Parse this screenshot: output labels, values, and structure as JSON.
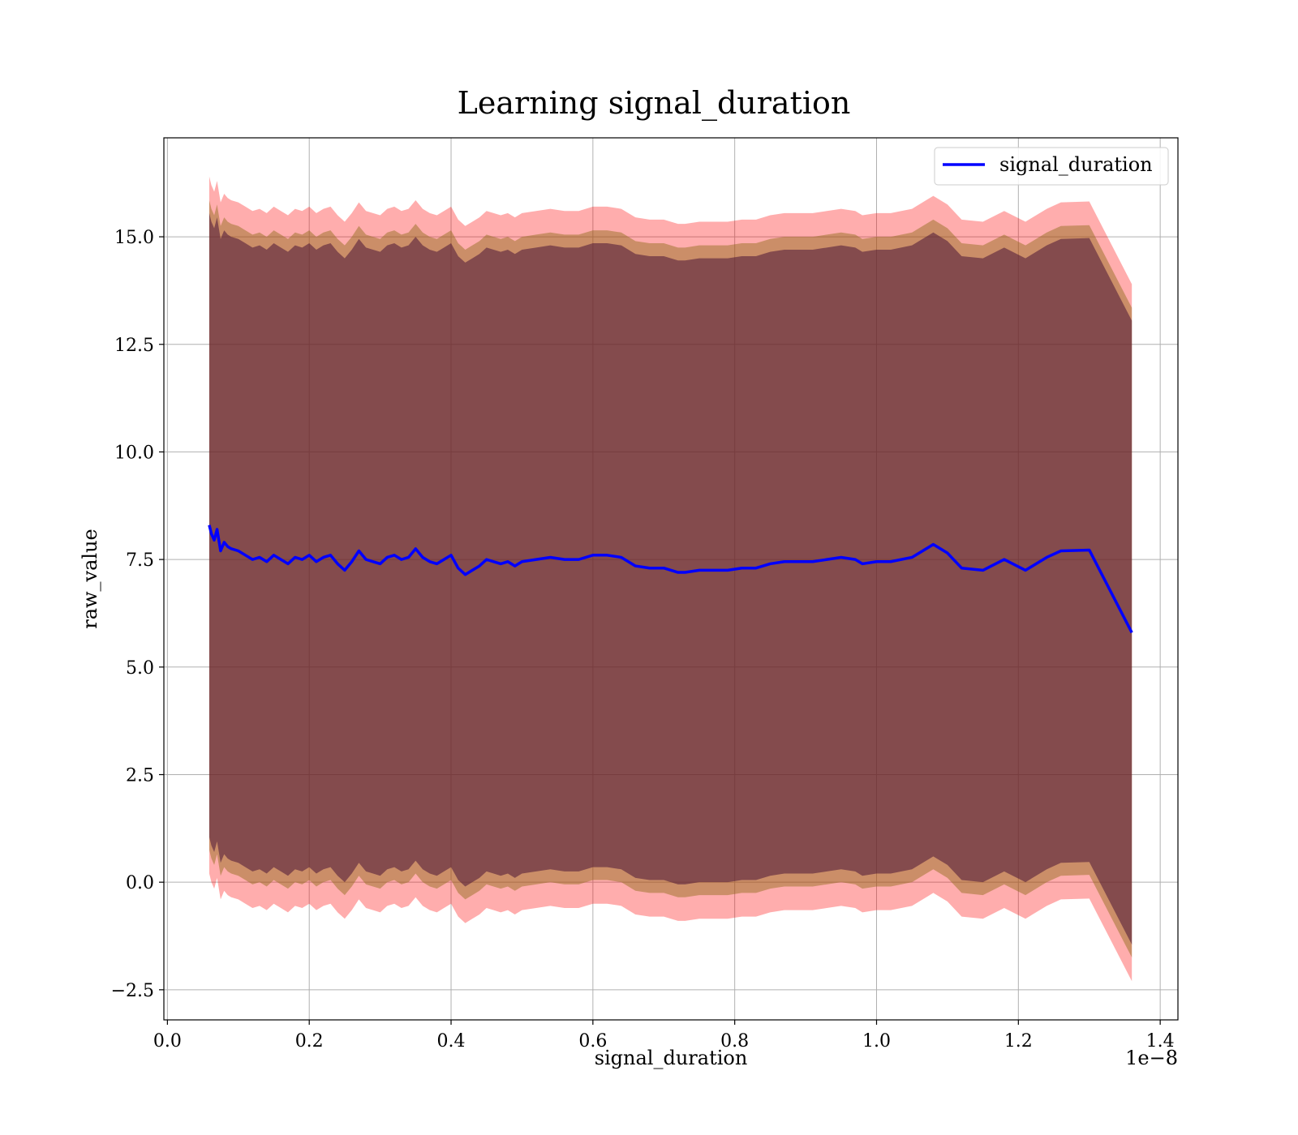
{
  "chart_data": {
    "type": "line",
    "title": "Learning signal_duration",
    "xlabel": "signal_duration",
    "ylabel": "raw_value",
    "x_offset_label": "1e−8",
    "xlim": [
      -0.005,
      1.425
    ],
    "ylim": [
      -3.2,
      17.3
    ],
    "x_ticks": [
      0.0,
      0.2,
      0.4,
      0.6,
      0.8,
      1.0,
      1.2,
      1.4
    ],
    "x_tick_labels": [
      "0.0",
      "0.2",
      "0.4",
      "0.6",
      "0.8",
      "1.0",
      "1.2",
      "1.4"
    ],
    "y_ticks": [
      -2.5,
      0.0,
      2.5,
      5.0,
      7.5,
      10.0,
      12.5,
      15.0
    ],
    "y_tick_labels": [
      "−2.5",
      "0.0",
      "2.5",
      "5.0",
      "7.5",
      "10.0",
      "12.5",
      "15.0"
    ],
    "grid": true,
    "legend_position": "top-right",
    "colors": {
      "line": "#0000ff",
      "band_outer": "#ff0000",
      "band_mid": "#8b6914",
      "band_inner": "#4b1436",
      "grid": "#b0b0b0"
    },
    "series": [
      {
        "name": "signal_duration",
        "x": [
          0.059,
          0.062,
          0.066,
          0.07,
          0.075,
          0.08,
          0.085,
          0.09,
          0.1,
          0.11,
          0.12,
          0.13,
          0.14,
          0.15,
          0.16,
          0.17,
          0.18,
          0.19,
          0.2,
          0.21,
          0.22,
          0.23,
          0.24,
          0.25,
          0.26,
          0.27,
          0.28,
          0.29,
          0.3,
          0.31,
          0.32,
          0.33,
          0.34,
          0.35,
          0.36,
          0.37,
          0.38,
          0.39,
          0.4,
          0.41,
          0.42,
          0.43,
          0.44,
          0.45,
          0.46,
          0.47,
          0.48,
          0.49,
          0.5,
          0.52,
          0.54,
          0.56,
          0.58,
          0.6,
          0.62,
          0.64,
          0.66,
          0.68,
          0.7,
          0.72,
          0.73,
          0.75,
          0.77,
          0.79,
          0.81,
          0.83,
          0.85,
          0.87,
          0.89,
          0.91,
          0.93,
          0.95,
          0.97,
          0.98,
          1.0,
          1.02,
          1.05,
          1.08,
          1.1,
          1.12,
          1.15,
          1.18,
          1.21,
          1.24,
          1.26,
          1.3,
          1.36
        ],
        "y": [
          8.3,
          8.1,
          7.95,
          8.2,
          7.7,
          7.9,
          7.8,
          7.75,
          7.7,
          7.6,
          7.5,
          7.55,
          7.45,
          7.6,
          7.5,
          7.4,
          7.55,
          7.5,
          7.6,
          7.45,
          7.55,
          7.6,
          7.4,
          7.25,
          7.45,
          7.7,
          7.5,
          7.45,
          7.4,
          7.55,
          7.6,
          7.5,
          7.55,
          7.75,
          7.55,
          7.45,
          7.4,
          7.5,
          7.6,
          7.3,
          7.15,
          7.25,
          7.35,
          7.5,
          7.45,
          7.4,
          7.45,
          7.35,
          7.45,
          7.5,
          7.55,
          7.5,
          7.5,
          7.6,
          7.6,
          7.55,
          7.35,
          7.3,
          7.3,
          7.2,
          7.2,
          7.25,
          7.25,
          7.25,
          7.3,
          7.3,
          7.4,
          7.45,
          7.45,
          7.45,
          7.5,
          7.55,
          7.5,
          7.4,
          7.45,
          7.45,
          7.55,
          7.85,
          7.65,
          7.3,
          7.25,
          7.5,
          7.25,
          7.55,
          7.7,
          7.72,
          5.8
        ]
      }
    ],
    "bands": [
      {
        "role": "outer",
        "offset": 8.1
      },
      {
        "role": "mid",
        "offset": 7.55
      },
      {
        "role": "inner",
        "offset": 7.25
      }
    ]
  }
}
